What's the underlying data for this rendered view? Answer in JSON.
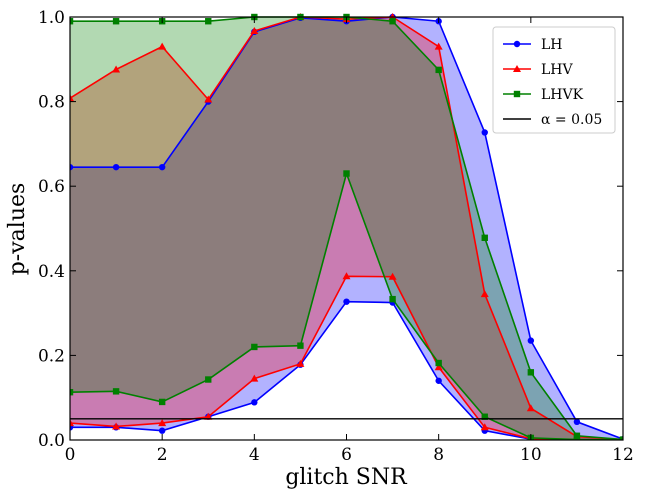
{
  "chart_data": {
    "type": "line",
    "title": "",
    "xlabel": "glitch SNR",
    "ylabel": "p-values",
    "xlim": [
      0,
      12
    ],
    "ylim": [
      0,
      1.0
    ],
    "xticks": [
      "0",
      "2",
      "4",
      "6",
      "8",
      "10",
      "12"
    ],
    "yticks": [
      "0.0",
      "0.2",
      "0.4",
      "0.6",
      "0.8",
      "1.0"
    ],
    "x": [
      0,
      1,
      2,
      3,
      4,
      5,
      6,
      7,
      8,
      9,
      10,
      11,
      12
    ],
    "legend_position": "top-right",
    "series": [
      {
        "name": "LH",
        "color": "#0000ff",
        "marker": "circle",
        "fill_alpha": 0.3,
        "upper": [
          0.645,
          0.645,
          0.645,
          0.8,
          0.965,
          0.998,
          0.99,
          1.0,
          0.99,
          0.727,
          0.235,
          0.043,
          0.002
        ],
        "lower": [
          0.03,
          0.03,
          0.022,
          0.055,
          0.089,
          0.178,
          0.327,
          0.325,
          0.14,
          0.022,
          0.002,
          0.001,
          0.0
        ]
      },
      {
        "name": "LHV",
        "color": "#ff0000",
        "marker": "triangle",
        "fill_alpha": 0.3,
        "upper": [
          0.808,
          0.876,
          0.93,
          0.805,
          0.967,
          1.0,
          0.995,
          1.0,
          0.93,
          0.345,
          0.075,
          0.008,
          0.001
        ],
        "lower": [
          0.04,
          0.032,
          0.04,
          0.055,
          0.145,
          0.18,
          0.387,
          0.386,
          0.172,
          0.03,
          0.003,
          0.001,
          0.0
        ]
      },
      {
        "name": "LHVK",
        "color": "#008000",
        "marker": "square",
        "fill_alpha": 0.3,
        "upper": [
          0.99,
          0.99,
          0.99,
          0.99,
          1.0,
          1.0,
          1.0,
          0.99,
          0.875,
          0.478,
          0.16,
          0.01,
          0.001
        ],
        "lower": [
          0.113,
          0.115,
          0.09,
          0.143,
          0.22,
          0.223,
          0.63,
          0.333,
          0.182,
          0.055,
          0.005,
          0.001,
          0.0
        ]
      }
    ],
    "reference_line": {
      "name": "α = 0.05",
      "y": 0.05,
      "color": "#000000"
    }
  }
}
